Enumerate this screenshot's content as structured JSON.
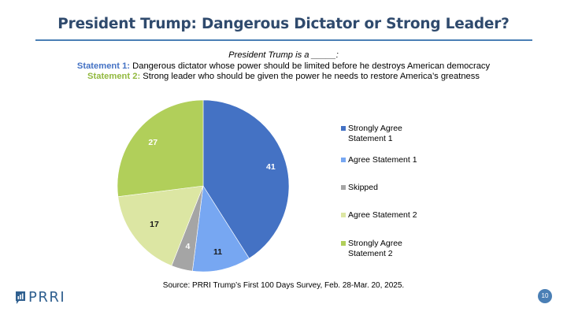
{
  "header": {
    "title": "President Trump: Dangerous Dictator or Strong Leader?"
  },
  "subtitle": {
    "question": "President Trump is a _____:",
    "statement1_label": "Statement 1:",
    "statement1_text": " Dangerous dictator whose power should be limited before he destroys American democracy",
    "statement2_label": "Statement 2:",
    "statement2_text": " Strong leader who should be given the power he needs to restore America’s greatness"
  },
  "chart_data": {
    "type": "pie",
    "title": "President Trump: Dangerous Dictator or Strong Leader?",
    "start_angle": "12 o'clock",
    "direction": "clockwise",
    "legend_position": "right",
    "slices": [
      {
        "label": "Strongly Agree Statement 1",
        "legend_lines": [
          "Strongly Agree",
          "Statement 1"
        ],
        "value": 41,
        "color": "#4472c4",
        "label_color": "#ffffff"
      },
      {
        "label": "Agree Statement 1",
        "legend_lines": [
          "Agree Statement 1"
        ],
        "value": 11,
        "color": "#77a7f2",
        "label_color": "#1a1a1a"
      },
      {
        "label": "Skipped",
        "legend_lines": [
          "Skipped"
        ],
        "value": 4,
        "color": "#a5a5a5",
        "label_color": "#ffffff"
      },
      {
        "label": "Agree Statement 2",
        "legend_lines": [
          "Agree Statement 2"
        ],
        "value": 17,
        "color": "#dce6a3",
        "label_color": "#1a1a1a"
      },
      {
        "label": "Strongly Agree Statement 2",
        "legend_lines": [
          "Strongly Agree",
          "Statement 2"
        ],
        "value": 27,
        "color": "#b1cf5a",
        "label_color": "#ffffff"
      }
    ]
  },
  "footer": {
    "source": "Source: PRRI Trump’s First 100 Days Survey, Feb. 28-Mar. 20, 2025.",
    "logo_text": "PRRI",
    "page_number": "10"
  },
  "colors": {
    "title": "#2f4a6d",
    "rule": "#4a7fb5",
    "statement1": "#4472c4",
    "statement2": "#92b93f"
  }
}
